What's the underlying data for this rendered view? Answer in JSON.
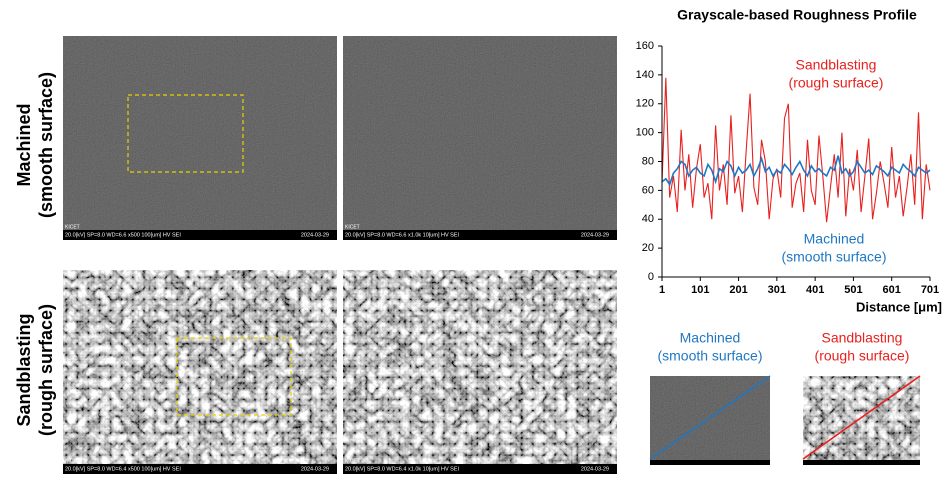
{
  "rows": [
    {
      "label": [
        "Machined",
        "(smooth surface)"
      ]
    },
    {
      "label": [
        "Sandblasting",
        "(rough surface)"
      ]
    }
  ],
  "images": [
    {
      "lab": "KICET",
      "info": "20.0[kV]   SP=8.0   WD=6.6   x500    100[um]     HV     SEI",
      "date": "2024-03-29"
    },
    {
      "lab": "KICET",
      "info": "20.0[kV]   SP=8.0   WD=6.6   x1.0k    10[um]     HV     SEI",
      "date": "2024-03-29"
    },
    {
      "lab": "KICET",
      "info": "20.0[kV]   SP=8.0   WD=6.4   x500    100[um]     HV     SEI",
      "date": "2024-03-29"
    },
    {
      "lab": "KICET",
      "info": "20.0[kV]   SP=8.0   WD=6.4   x1.0k    10[um]     HV     SEI",
      "date": "2024-03-29"
    }
  ],
  "thumbnails": [
    {
      "label": [
        "Machined",
        "(smooth surface)"
      ],
      "color": "#1f77c4"
    },
    {
      "label": [
        "Sandblasting",
        "(rough surface)"
      ],
      "color": "#e8201e"
    }
  ],
  "chart_data": {
    "type": "line",
    "title": "Grayscale-based Roughness Profile",
    "x_label": "Distance [μm]",
    "x": [
      1,
      11,
      21,
      31,
      41,
      51,
      61,
      71,
      81,
      91,
      101,
      111,
      121,
      131,
      141,
      151,
      161,
      171,
      181,
      191,
      201,
      211,
      221,
      231,
      241,
      251,
      261,
      271,
      281,
      291,
      301,
      311,
      321,
      331,
      341,
      351,
      361,
      371,
      381,
      391,
      401,
      411,
      421,
      431,
      441,
      451,
      461,
      471,
      481,
      491,
      501,
      511,
      521,
      531,
      541,
      551,
      561,
      571,
      581,
      591,
      601,
      611,
      621,
      631,
      641,
      651,
      661,
      671,
      681,
      691,
      701
    ],
    "series": [
      {
        "color": "#e8201e",
        "values": [
          65,
          138,
          55,
          70,
          45,
          102,
          60,
          85,
          48,
          75,
          92,
          55,
          65,
          40,
          105,
          60,
          78,
          50,
          112,
          58,
          70,
          45,
          88,
          127,
          62,
          50,
          95,
          80,
          40,
          68,
          75,
          55,
          110,
          120,
          48,
          65,
          72,
          45,
          95,
          60,
          50,
          98,
          70,
          38,
          62,
          85,
          55,
          100,
          42,
          75,
          60,
          88,
          45,
          70,
          96,
          40,
          58,
          80,
          65,
          48,
          90,
          55,
          70,
          42,
          62,
          85,
          50,
          114,
          40,
          78,
          60
        ]
      },
      {
        "color": "#1f77c4",
        "values": [
          66,
          68,
          64,
          72,
          75,
          80,
          78,
          70,
          74,
          76,
          72,
          70,
          78,
          74,
          66,
          75,
          73,
          80,
          77,
          70,
          76,
          72,
          74,
          78,
          70,
          75,
          82,
          73,
          76,
          70,
          74,
          72,
          78,
          75,
          71,
          76,
          80,
          74,
          70,
          77,
          73,
          75,
          72,
          70,
          76,
          74,
          84,
          72,
          75,
          70,
          73,
          80,
          76,
          72,
          74,
          71,
          77,
          75,
          73,
          70,
          76,
          74,
          72,
          78,
          75,
          73,
          70,
          76,
          74,
          72,
          74
        ]
      }
    ],
    "xlim": [
      1,
      701
    ],
    "xticks": [
      1,
      101,
      201,
      301,
      401,
      501,
      601,
      701
    ],
    "ylim": [
      0,
      160
    ],
    "yticks": [
      0,
      20,
      40,
      60,
      80,
      100,
      120,
      140,
      160
    ],
    "annotations": [
      {
        "lines": [
          "Sandblasting",
          "(rough surface)"
        ],
        "color": "#e8201e"
      },
      {
        "lines": [
          "Machined",
          "(smooth surface)"
        ],
        "color": "#1f77c4"
      }
    ]
  }
}
